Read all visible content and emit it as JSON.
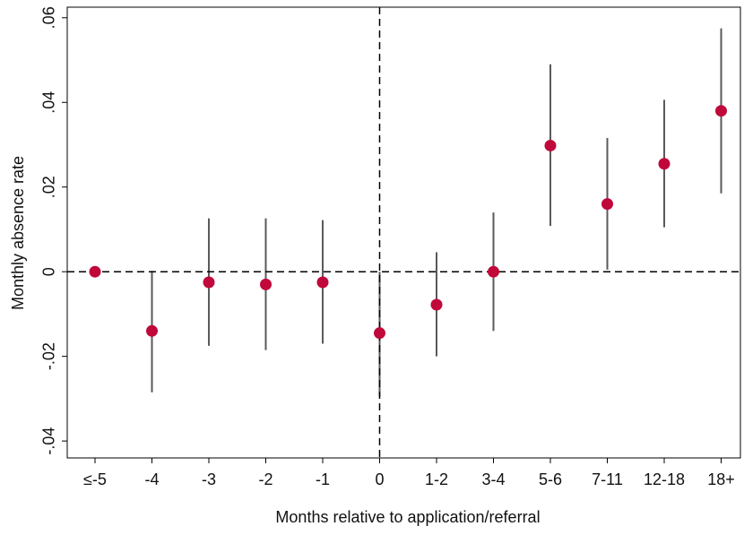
{
  "chart_data": {
    "type": "scatter",
    "title": "",
    "xlabel": "Months relative to application/referral",
    "ylabel": "Monthly absence rate",
    "categories": [
      "≤-5",
      "-4",
      "-3",
      "-2",
      "-1",
      "0",
      "1-2",
      "3-4",
      "5-6",
      "7-11",
      "12-18",
      "18+"
    ],
    "series": [
      {
        "values": [
          0.0,
          -0.014,
          -0.0025,
          -0.003,
          -0.0025,
          -0.0145,
          -0.0078,
          0.0,
          0.0298,
          0.016,
          0.0255,
          0.038
        ],
        "ci_low": [
          0.0,
          -0.0285,
          -0.0175,
          -0.0185,
          -0.017,
          -0.0295,
          -0.02,
          -0.014,
          0.0108,
          0.0005,
          0.0105,
          0.0185
        ],
        "ci_high": [
          0.0,
          0.0002,
          0.0126,
          0.0126,
          0.0122,
          0.0,
          0.0046,
          0.014,
          0.049,
          0.0316,
          0.0406,
          0.0575
        ]
      }
    ],
    "yticks": [
      {
        "value": -0.04,
        "label": "-.04"
      },
      {
        "value": -0.02,
        "label": "-.02"
      },
      {
        "value": 0,
        "label": "0"
      },
      {
        "value": 0.02,
        "label": ".02"
      },
      {
        "value": 0.04,
        "label": ".04"
      },
      {
        "value": 0.06,
        "label": ".06"
      }
    ],
    "ylim": [
      -0.044,
      0.0625
    ],
    "reference_lines": {
      "y": 0,
      "x_category": "0"
    },
    "grid": false,
    "colors": {
      "point": "#c0083a",
      "ci": "#5a5a5a",
      "axis": "#000000"
    }
  }
}
